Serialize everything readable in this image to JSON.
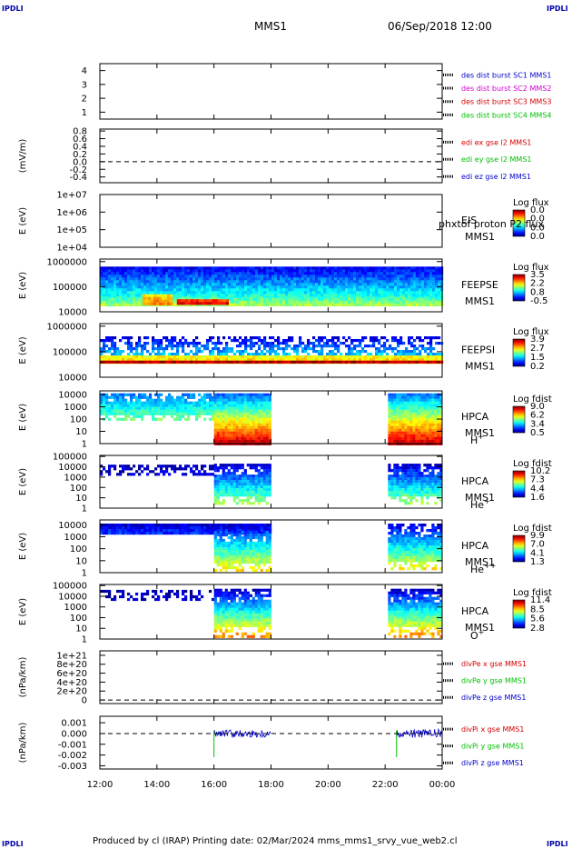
{
  "corner_label": "IPDLI",
  "header": {
    "spacecraft": "MMS1",
    "datetime": "06/Sep/2018 12:00"
  },
  "footer": {
    "text": "Produced by cl (IRAP)   Printing date: 02/Mar/2024   mms_mms1_srvy_vue_web2.cl"
  },
  "colors": {
    "red": "#d40000",
    "green": "#00c000",
    "blue": "#0000c8",
    "magenta": "#d000d0"
  },
  "chart_data": {
    "type": "heatmap",
    "x_axis": {
      "ticks": [
        "12:00",
        "14:00",
        "16:00",
        "18:00",
        "20:00",
        "22:00",
        "00:00"
      ],
      "range_hours": [
        0,
        12
      ]
    },
    "panels": [
      {
        "id": "desdist",
        "kind": "line",
        "ylabel": "",
        "ticks": [
          {
            "label": "4",
            "v": 4
          },
          {
            "label": "3",
            "v": 3
          },
          {
            "label": "2",
            "v": 2
          },
          {
            "label": "1",
            "v": 1
          }
        ],
        "ylim": [
          0.5,
          4.5
        ],
        "dashed_zero": false,
        "legend": [
          {
            "text": "des dist burst SC1 MMS1",
            "color": "blue"
          },
          {
            "text": "des dist burst SC2 MMS2",
            "color": "magenta"
          },
          {
            "text": "des dist burst SC3 MMS3",
            "color": "red"
          },
          {
            "text": "des dist burst SC4 MMS4",
            "color": "green"
          }
        ]
      },
      {
        "id": "edi",
        "kind": "line",
        "ylabel": "(mV/m)",
        "ticks": [
          {
            "label": "0.8",
            "v": 0.8
          },
          {
            "label": "0.6",
            "v": 0.6
          },
          {
            "label": "0.4",
            "v": 0.4
          },
          {
            "label": "0.2",
            "v": 0.2
          },
          {
            "label": "0.0",
            "v": 0.0
          },
          {
            "label": "-0.2",
            "v": -0.2
          },
          {
            "label": "-0.4",
            "v": -0.4
          }
        ],
        "ylim": [
          -0.55,
          0.85
        ],
        "dashed_zero": true,
        "legend": [
          {
            "text": "edi ex gse l2 MMS1",
            "color": "red"
          },
          {
            "text": "edi ey gse l2 MMS1",
            "color": "green"
          },
          {
            "text": "edi ez gse l2 MMS1",
            "color": "blue"
          }
        ]
      },
      {
        "id": "eis",
        "kind": "spec",
        "ylabel": "E (eV)",
        "ticks": [
          {
            "label": "1e+07",
            "v": 7
          },
          {
            "label": "1e+06",
            "v": 6
          },
          {
            "label": "1e+05",
            "v": 5
          },
          {
            "label": "1e+04",
            "v": 4
          }
        ],
        "ylim": [
          4,
          7
        ],
        "labels": [
          "EIS",
          "MMS1"
        ],
        "overlay": "phxtof proton P2 flux",
        "cbar_title": "Log flux",
        "cbar_ticks": [
          "0.0",
          "0.0",
          "0.0",
          "0.0"
        ],
        "cbar_type": "jet",
        "blocks": []
      },
      {
        "id": "feeps_e",
        "kind": "spec",
        "ylabel": "E (eV)",
        "ticks": [
          {
            "label": "1000000",
            "v": 6
          },
          {
            "label": "100000",
            "v": 5
          },
          {
            "label": "10000",
            "v": 4
          }
        ],
        "ylim": [
          4,
          6.1
        ],
        "labels": [
          "FEEPSE",
          "MMS1"
        ],
        "cbar_title": "Log flux",
        "cbar_ticks": [
          "3.5",
          "2.2",
          "0.8",
          "-0.5"
        ],
        "cbar_type": "jet",
        "blocks": [
          {
            "t0": 0,
            "t1": 12,
            "e0": 4.3,
            "e1": 5.8,
            "c0": 0.5,
            "c1": 0.12,
            "noise": "dense"
          },
          {
            "t0": 0,
            "t1": 12,
            "e0": 4.3,
            "e1": 4.55,
            "c0": 0.55,
            "c1": 0.45,
            "noise": "dense"
          },
          {
            "t0": 1.5,
            "t1": 2.5,
            "e0": 4.3,
            "e1": 4.7,
            "c0": 0.78,
            "c1": 0.65,
            "noise": "dense"
          },
          {
            "t0": 2.7,
            "t1": 4.5,
            "e0": 4.3,
            "e1": 4.5,
            "c0": 0.95,
            "c1": 0.82,
            "noise": "dense"
          }
        ]
      },
      {
        "id": "feeps_i",
        "kind": "spec",
        "ylabel": "E (eV)",
        "ticks": [
          {
            "label": "1000000",
            "v": 6
          },
          {
            "label": "100000",
            "v": 5
          },
          {
            "label": "10000",
            "v": 4
          }
        ],
        "ylim": [
          4,
          6.1
        ],
        "labels": [
          "FEEPSI",
          "MMS1"
        ],
        "cbar_title": "Log flux",
        "cbar_ticks": [
          "3.9",
          "2.7",
          "1.5",
          "0.2"
        ],
        "cbar_type": "jet",
        "blocks": [
          {
            "t0": 0,
            "t1": 12,
            "e0": 4.85,
            "e1": 5.6,
            "c0": 0.35,
            "c1": 0.1,
            "noise": "speckle"
          },
          {
            "t0": 0,
            "t1": 12,
            "e0": 4.62,
            "e1": 4.85,
            "c0": 0.68,
            "c1": 0.62,
            "noise": "dense"
          },
          {
            "t0": 0,
            "t1": 12,
            "e0": 4.55,
            "e1": 4.65,
            "c0": 0.95,
            "c1": 0.95,
            "noise": "dense"
          }
        ]
      },
      {
        "id": "hpca_h",
        "kind": "spec",
        "ylabel": "E (eV)",
        "ticks": [
          {
            "label": "10000",
            "v": 4
          },
          {
            "label": "1000",
            "v": 3
          },
          {
            "label": "100",
            "v": 2
          },
          {
            "label": "10",
            "v": 1
          },
          {
            "label": "1",
            "v": 0
          }
        ],
        "ylim": [
          0,
          4.3
        ],
        "labels": [
          "HPCA",
          "MMS1"
        ],
        "ion": "H",
        "ion_sup": "+",
        "cbar_title": "Log fdist",
        "cbar_ticks": [
          "9.0",
          "6.2",
          "3.4",
          "0.5"
        ],
        "cbar_type": "jet",
        "blocks": [
          {
            "t0": 0,
            "t1": 4,
            "e0": 2.0,
            "e1": 4.1,
            "c0": 0.5,
            "c1": 0.25,
            "noise": "frayed"
          },
          {
            "t0": 4,
            "t1": 6,
            "e0": 0.0,
            "e1": 4.1,
            "c0": 0.97,
            "c1": 0.22,
            "noise": "dense"
          },
          {
            "t0": 10.1,
            "t1": 12,
            "e0": 0.0,
            "e1": 4.1,
            "c0": 0.95,
            "c1": 0.25,
            "noise": "dense"
          }
        ]
      },
      {
        "id": "hpca_he1",
        "kind": "spec",
        "ylabel": "E (eV)",
        "ticks": [
          {
            "label": "100000",
            "v": 5
          },
          {
            "label": "10000",
            "v": 4
          },
          {
            "label": "1000",
            "v": 3
          },
          {
            "label": "100",
            "v": 2
          },
          {
            "label": "10",
            "v": 1
          },
          {
            "label": "1",
            "v": 0
          }
        ],
        "ylim": [
          0,
          5.1
        ],
        "labels": [
          "HPCA",
          "MMS1"
        ],
        "ion": "He",
        "ion_sup": "+",
        "cbar_title": "Log fdist",
        "cbar_ticks": [
          "10.2",
          "7.3",
          "4.4",
          "1.6"
        ],
        "cbar_type": "jet",
        "blocks": [
          {
            "t0": 0,
            "t1": 4,
            "e0": 3.4,
            "e1": 4.2,
            "c0": 0.08,
            "c1": 0.05,
            "noise": "speckle"
          },
          {
            "t0": 4,
            "t1": 6,
            "e0": 0.5,
            "e1": 4.3,
            "c0": 0.55,
            "c1": 0.08,
            "noise": "frayed"
          },
          {
            "t0": 10.1,
            "t1": 12,
            "e0": 0.5,
            "e1": 4.3,
            "c0": 0.55,
            "c1": 0.08,
            "noise": "frayed"
          }
        ]
      },
      {
        "id": "hpca_he2",
        "kind": "spec",
        "ylabel": "E (eV)",
        "ticks": [
          {
            "label": "10000",
            "v": 4
          },
          {
            "label": "1000",
            "v": 3
          },
          {
            "label": "100",
            "v": 2
          },
          {
            "label": "10",
            "v": 1
          },
          {
            "label": "1",
            "v": 0
          }
        ],
        "ylim": [
          0,
          4.4
        ],
        "labels": [
          "HPCA",
          "MMS1"
        ],
        "ion": "He",
        "ion_sup": "++",
        "cbar_title": "Log fdist",
        "cbar_ticks": [
          "9.9",
          "7.0",
          "4.1",
          "1.3"
        ],
        "cbar_type": "jet",
        "blocks": [
          {
            "t0": 0,
            "t1": 6,
            "e0": 3.3,
            "e1": 4.1,
            "c0": 0.18,
            "c1": 0.08,
            "noise": "dense"
          },
          {
            "t0": 4,
            "t1": 6,
            "e0": 0.3,
            "e1": 3.5,
            "c0": 0.65,
            "c1": 0.2,
            "noise": "frayed"
          },
          {
            "t0": 10.1,
            "t1": 12,
            "e0": 0.3,
            "e1": 4.1,
            "c0": 0.65,
            "c1": 0.1,
            "noise": "frayed"
          }
        ]
      },
      {
        "id": "hpca_o",
        "kind": "spec",
        "ylabel": "E (eV)",
        "ticks": [
          {
            "label": "100000",
            "v": 5
          },
          {
            "label": "10000",
            "v": 4
          },
          {
            "label": "1000",
            "v": 3
          },
          {
            "label": "100",
            "v": 2
          },
          {
            "label": "10",
            "v": 1
          },
          {
            "label": "1",
            "v": 0
          }
        ],
        "ylim": [
          0,
          5.1
        ],
        "labels": [
          "HPCA",
          "MMS1"
        ],
        "ion": "O",
        "ion_sup": "+",
        "cbar_title": "Log fdist",
        "cbar_ticks": [
          "11.4",
          "8.5",
          "5.6",
          "2.8"
        ],
        "cbar_type": "jet",
        "blocks": [
          {
            "t0": 0,
            "t1": 4,
            "e0": 3.8,
            "e1": 4.6,
            "c0": 0.08,
            "c1": 0.05,
            "noise": "speckle"
          },
          {
            "t0": 4,
            "t1": 6,
            "e0": 0.3,
            "e1": 4.7,
            "c0": 0.75,
            "c1": 0.08,
            "noise": "frayed"
          },
          {
            "t0": 10.1,
            "t1": 12,
            "e0": 0.3,
            "e1": 4.7,
            "c0": 0.75,
            "c1": 0.08,
            "noise": "frayed"
          }
        ]
      },
      {
        "id": "divpe",
        "kind": "line",
        "ylabel": "(nPa/km)",
        "ticks": [
          {
            "label": "1e+21",
            "v": 10
          },
          {
            "label": "8e+20",
            "v": 8
          },
          {
            "label": "6e+20",
            "v": 6
          },
          {
            "label": "4e+20",
            "v": 4
          },
          {
            "label": "2e+20",
            "v": 2
          },
          {
            "label": "0",
            "v": 0
          }
        ],
        "ylim": [
          -0.8,
          11
        ],
        "dashed_zero": true,
        "legend": [
          {
            "text": "divPe x gse MMS1",
            "color": "red"
          },
          {
            "text": "divPe y gse MMS1",
            "color": "green"
          },
          {
            "text": "divPe z gse MMS1",
            "color": "blue"
          }
        ]
      },
      {
        "id": "divpi",
        "kind": "noise",
        "ylabel": "(nPa/km)",
        "ticks": [
          {
            "label": "0.001",
            "v": 0.001
          },
          {
            "label": "0.000",
            "v": 0
          },
          {
            "label": "-0.001",
            "v": -0.001
          },
          {
            "label": "-0.002",
            "v": -0.002
          },
          {
            "label": "-0.003",
            "v": -0.003
          }
        ],
        "ylim": [
          -0.0033,
          0.0016
        ],
        "dashed_zero": true,
        "bursts": [
          {
            "t0": 4,
            "t1": 6,
            "amp": 0.00035
          },
          {
            "t0": 10.4,
            "t1": 12,
            "amp": 0.0004
          }
        ],
        "legend": [
          {
            "text": "divPi x gse MMS1",
            "color": "red"
          },
          {
            "text": "divPi y gse MMS1",
            "color": "green"
          },
          {
            "text": "divPi z gse MMS1",
            "color": "blue"
          }
        ]
      }
    ]
  }
}
